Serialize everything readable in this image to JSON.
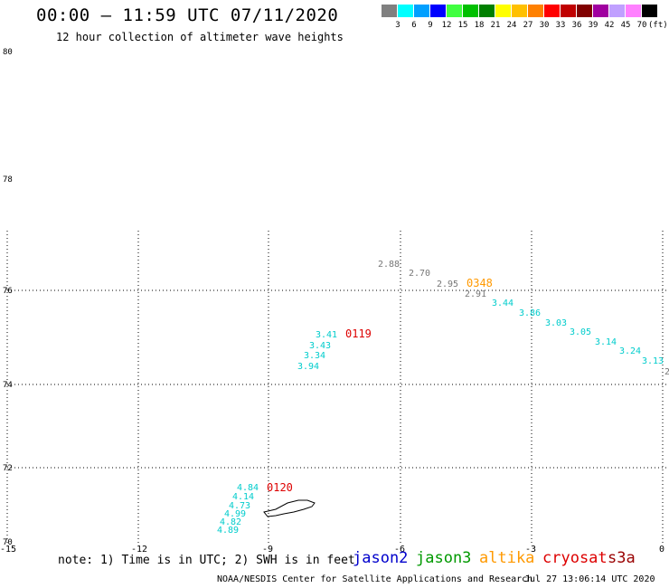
{
  "header": {
    "title": "00:00 – 11:59 UTC 07/11/2020",
    "subtitle": "12 hour collection of altimeter wave heights"
  },
  "legend": {
    "unit": "(ft)",
    "bins": [
      {
        "label": "3",
        "color": "#808080"
      },
      {
        "label": "6",
        "color": "#00ffff"
      },
      {
        "label": "9",
        "color": "#00a0ff"
      },
      {
        "label": "12",
        "color": "#0000ff"
      },
      {
        "label": "15",
        "color": "#40ff40"
      },
      {
        "label": "18",
        "color": "#00c000"
      },
      {
        "label": "21",
        "color": "#008000"
      },
      {
        "label": "24",
        "color": "#ffff00"
      },
      {
        "label": "27",
        "color": "#ffc000"
      },
      {
        "label": "30",
        "color": "#ff8000"
      },
      {
        "label": "33",
        "color": "#ff0000"
      },
      {
        "label": "36",
        "color": "#c00000"
      },
      {
        "label": "39",
        "color": "#800000"
      },
      {
        "label": "42",
        "color": "#a000a0"
      },
      {
        "label": "45",
        "color": "#c0a0ff"
      },
      {
        "label": "70",
        "color": "#ff80ff"
      },
      {
        "label": "",
        "color": "#000000"
      }
    ]
  },
  "axes": {
    "lat_labels": [
      "80",
      "78",
      "76",
      "74",
      "72",
      "70"
    ],
    "lon_labels": [
      "-15",
      "-12",
      "-9",
      "-6",
      "-3",
      "0"
    ]
  },
  "pass_times": [
    {
      "label": "0348",
      "color": "#ff9900"
    },
    {
      "label": "0119",
      "color": "#dd0000"
    },
    {
      "label": "0120",
      "color": "#dd0000"
    }
  ],
  "wave_heights": {
    "gray_track": [
      "2.88",
      "2.70",
      "2.95",
      "2.91"
    ],
    "cyan_track_east": [
      "3.44",
      "3.86",
      "3.03",
      "3.05",
      "3.14",
      "3.24",
      "3.13"
    ],
    "cyan_track_mid": [
      "3.41",
      "3.43",
      "3.34",
      "3.94"
    ],
    "cyan_track_south": [
      "4.84",
      "4.14",
      "4.73",
      "4.99",
      "4.82",
      "4.89"
    ],
    "edge_partial": "2"
  },
  "colors": {
    "gray_track": "#777777",
    "cyan_track": "#00cccc",
    "grid": "#000000"
  },
  "footer": {
    "note": "note: 1) Time is in UTC; 2) SWH is in feet",
    "satellites": [
      {
        "name": "jason2",
        "color": "#0000cc"
      },
      {
        "name": "jason3",
        "color": "#009900"
      },
      {
        "name": "altika",
        "color": "#ff9900"
      },
      {
        "name": "cryosat",
        "color": "#dd0000"
      },
      {
        "name": "s3a",
        "color": "#990000"
      }
    ],
    "credit": "NOAA/NESDIS Center for Satellite Applications and Research",
    "timestamp": "Jul 27 13:06:14 UTC 2020"
  }
}
